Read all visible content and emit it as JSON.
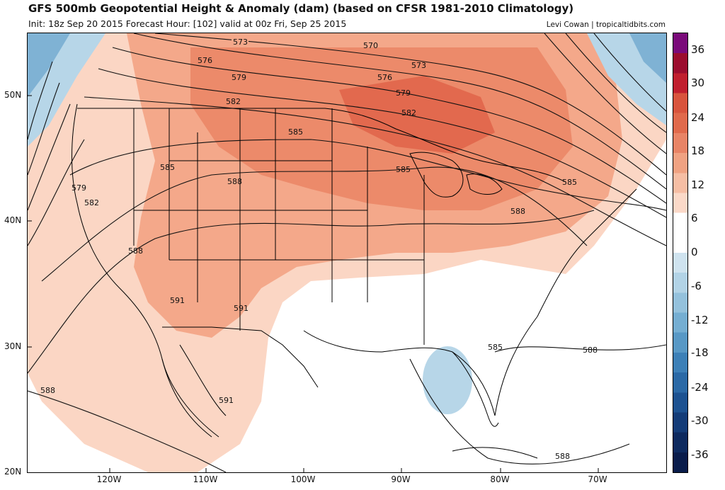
{
  "header": {
    "title": "GFS 500mb Geopotential Height & Anomaly (dam) (based on CFSR 1981-2010 Climatology)",
    "subtitle": "Init: 18z Sep 20 2015   Forecast Hour: [102]   valid at 00z Fri, Sep 25 2015",
    "credit": "Levi Cowan | tropicaltidbits.com"
  },
  "map": {
    "lat_labels": [
      "50N",
      "40N",
      "30N",
      "20N"
    ],
    "lon_labels": [
      "120W",
      "110W",
      "100W",
      "90W",
      "80W",
      "70W"
    ],
    "contour_labels": [
      "573",
      "570",
      "576",
      "573",
      "579",
      "576",
      "582",
      "579",
      "585",
      "582",
      "585",
      "585",
      "588",
      "579",
      "582",
      "588",
      "588",
      "585",
      "591",
      "591",
      "585",
      "588",
      "588",
      "591",
      "588"
    ],
    "colors": {
      "positive_low": "#fbd6c4",
      "positive_mid": "#f4a88a",
      "positive_high": "#e57357",
      "positive_peak": "#d8543d",
      "negative_low": "#b7d6e8",
      "negative_mid": "#7fb2d4",
      "negative_high": "#4f8fc0"
    }
  },
  "colorbar": {
    "labels": [
      "36",
      "30",
      "24",
      "18",
      "12",
      "6",
      "0",
      "-6",
      "-12",
      "-18",
      "-24",
      "-30",
      "-36"
    ],
    "colors": [
      "#7a0a7a",
      "#9b0d2e",
      "#c01f2e",
      "#d8543d",
      "#e06a4c",
      "#e88466",
      "#f0a282",
      "#f6bea4",
      "#fbd9c8",
      "#ffffff",
      "#ffffff",
      "#cfe3ef",
      "#b2d3e6",
      "#94c1dc",
      "#75aed2",
      "#5898c5",
      "#3d80b7",
      "#2b69a6",
      "#1d5291",
      "#143c78",
      "#0e2a5f",
      "#0a1c4b"
    ]
  }
}
